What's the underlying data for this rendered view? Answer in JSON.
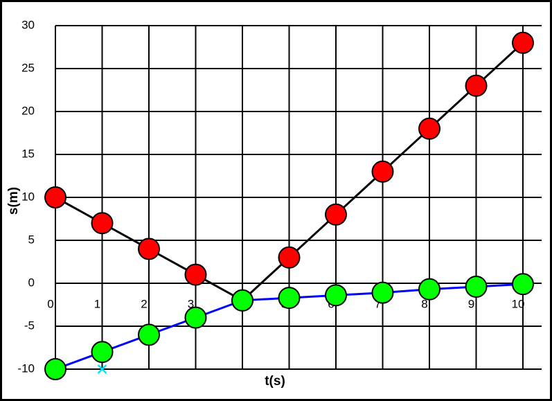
{
  "chart_data": {
    "type": "line",
    "x_label": "t(s)",
    "y_label": "s(m)",
    "x": [
      0,
      1,
      2,
      3,
      4,
      5,
      6,
      7,
      8,
      9,
      10
    ],
    "series": [
      {
        "color": "#ff0000",
        "line_color": "#000000",
        "marker": "circle",
        "values": [
          10,
          7,
          4,
          1,
          -2,
          3,
          8,
          13,
          18,
          23,
          28
        ]
      },
      {
        "color": "#00ff00",
        "line_color": "#0000ff",
        "marker": "circle",
        "values": [
          -10,
          -8,
          -6,
          -4,
          -2,
          -1.7,
          -1.4,
          -1.1,
          -0.7,
          -0.4,
          -0.1
        ]
      },
      {
        "color": "#00e5ee",
        "marker": "cross",
        "values": [
          null,
          -10,
          null,
          null,
          null,
          null,
          null,
          null,
          null,
          null,
          null
        ]
      }
    ],
    "xlim": [
      0,
      10.4
    ],
    "ylim": [
      -10,
      30
    ],
    "xticks": [
      0,
      1,
      2,
      3,
      4,
      5,
      6,
      7,
      8,
      9,
      10
    ],
    "yticks": [
      -10,
      -5,
      0,
      5,
      10,
      15,
      20,
      25,
      30
    ],
    "grid": true
  }
}
